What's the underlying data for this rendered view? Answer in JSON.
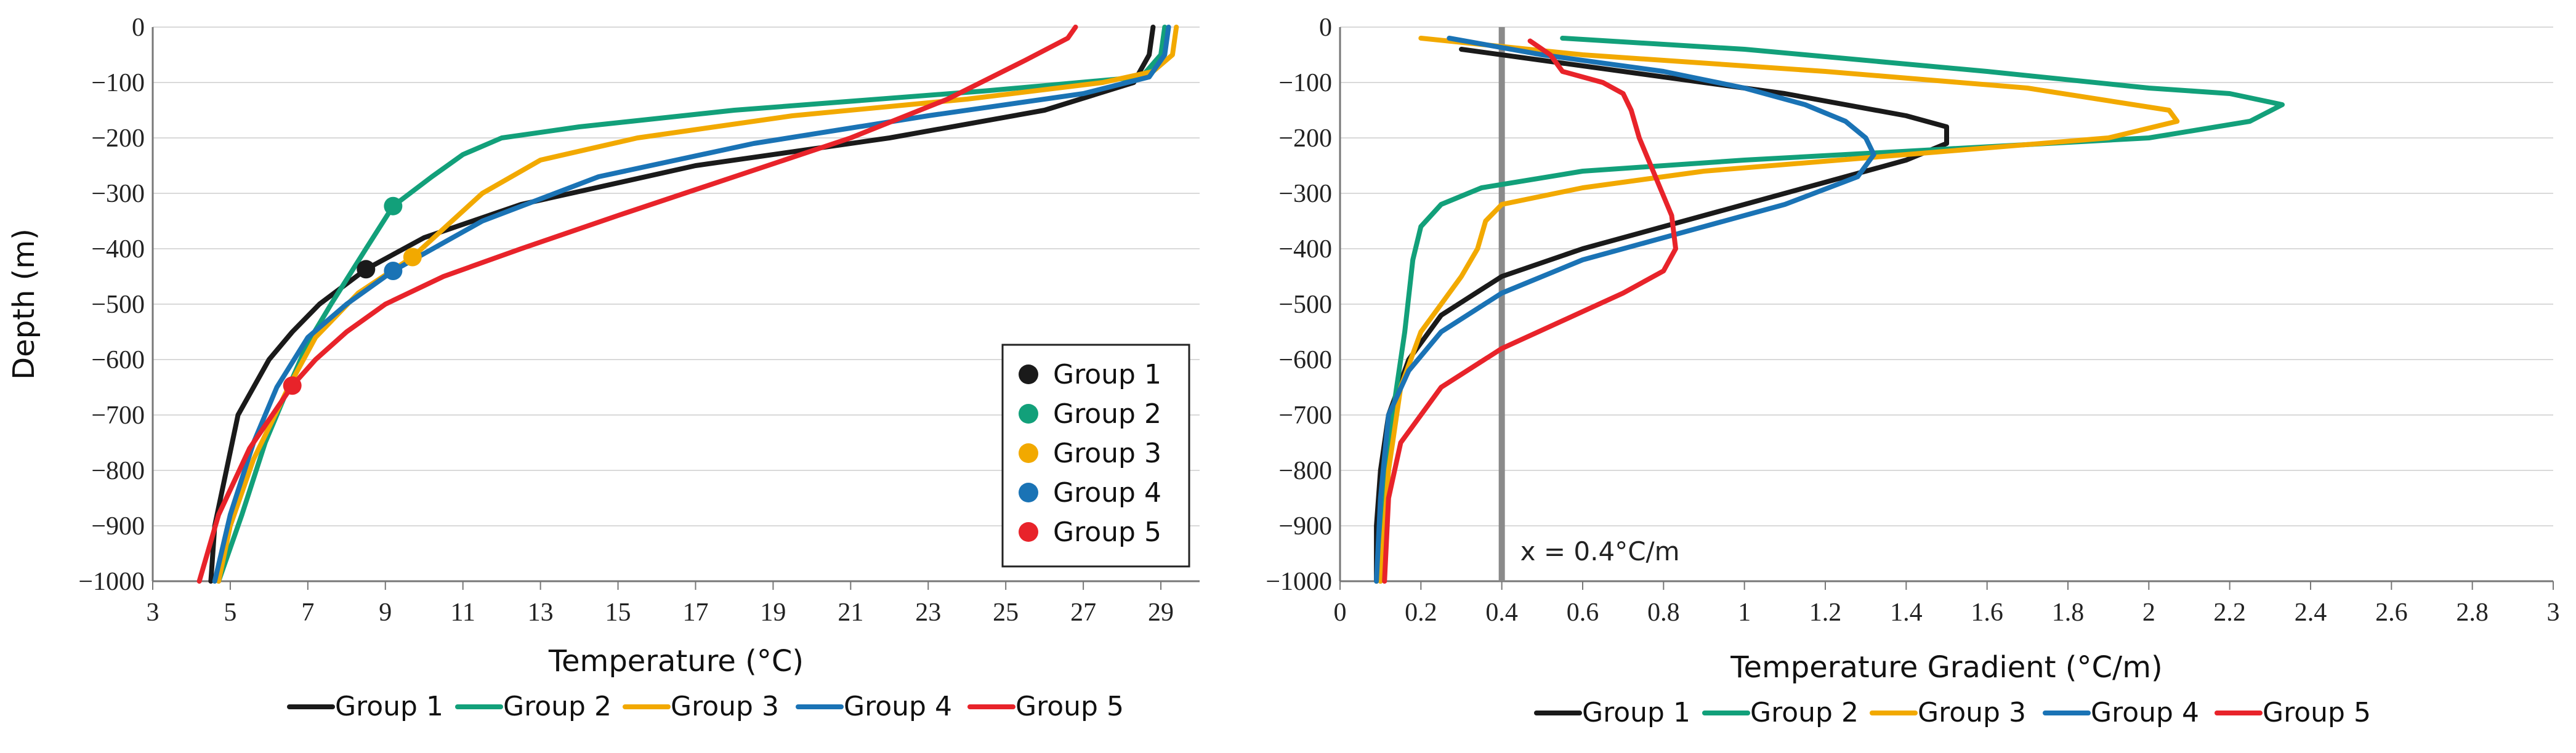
{
  "chart_data": [
    {
      "type": "line",
      "title": "",
      "xlabel": "Temperature (°C)",
      "ylabel": "Depth (m)",
      "xlim": [
        3,
        30
      ],
      "ylim": [
        -1000,
        0
      ],
      "xticks": [
        3,
        5,
        7,
        9,
        11,
        13,
        15,
        17,
        19,
        21,
        23,
        25,
        27,
        29
      ],
      "yticks": [
        0,
        -100,
        -200,
        -300,
        -400,
        -500,
        -600,
        -700,
        -800,
        -900,
        -1000
      ],
      "grid": "horizontal",
      "markers_legend_position": "center-right",
      "series": [
        {
          "name": "Group 1",
          "color": "#1a1a1a",
          "x": [
            28.8,
            28.7,
            28.3,
            26,
            22,
            17,
            12.5,
            10,
            8.5,
            7.3,
            6.6,
            6,
            5.6,
            5.2,
            4.9,
            4.6,
            4.5
          ],
          "y": [
            0,
            -50,
            -100,
            -150,
            -200,
            -250,
            -320,
            -380,
            -437,
            -500,
            -550,
            -600,
            -650,
            -700,
            -800,
            -900,
            -1000
          ],
          "marker": {
            "x": 8.5,
            "y": -437
          }
        },
        {
          "name": "Group 2",
          "color": "#12a07a",
          "x": [
            29.1,
            29,
            28.5,
            24.5,
            18,
            14,
            12,
            11,
            10.2,
            9.2,
            8.5,
            7.6,
            7,
            6.5,
            5.9,
            5.3,
            4.7
          ],
          "y": [
            0,
            -50,
            -90,
            -115,
            -150,
            -180,
            -200,
            -230,
            -270,
            -323,
            -400,
            -500,
            -570,
            -650,
            -750,
            -880,
            -1000
          ],
          "marker": {
            "x": 9.2,
            "y": -323
          }
        },
        {
          "name": "Group 3",
          "color": "#f2a900",
          "x": [
            29.4,
            29.3,
            28.8,
            27.5,
            24,
            19.5,
            15.5,
            13,
            11.5,
            9.7,
            8.3,
            7.2,
            6.5,
            5.6,
            5,
            4.7
          ],
          "y": [
            0,
            -50,
            -80,
            -100,
            -130,
            -160,
            -200,
            -240,
            -300,
            -415,
            -480,
            -560,
            -650,
            -780,
            -900,
            -1000
          ],
          "marker": {
            "x": 9.7,
            "y": -415
          }
        },
        {
          "name": "Group 4",
          "color": "#1a73b5",
          "x": [
            29.2,
            29.1,
            28.7,
            27,
            23,
            18.5,
            14.5,
            11.5,
            9.2,
            8,
            7,
            6.2,
            5.6,
            5,
            4.6
          ],
          "y": [
            0,
            -50,
            -90,
            -120,
            -160,
            -210,
            -270,
            -350,
            -440,
            -500,
            -560,
            -650,
            -750,
            -880,
            -1000
          ],
          "marker": {
            "x": 9.2,
            "y": -440
          }
        },
        {
          "name": "Group 5",
          "color": "#e8232a",
          "x": [
            26.8,
            26.6,
            25.5,
            23.5,
            21,
            18,
            15,
            12.5,
            10.5,
            9,
            8,
            7.2,
            6.6,
            5.5,
            4.7,
            4.2
          ],
          "y": [
            0,
            -20,
            -60,
            -130,
            -200,
            -270,
            -340,
            -400,
            -450,
            -500,
            -550,
            -600,
            -647,
            -760,
            -880,
            -1000
          ],
          "marker": {
            "x": 6.6,
            "y": -647
          }
        }
      ],
      "marker_legend": [
        "Group 1",
        "Group 2",
        "Group 3",
        "Group 4",
        "Group 5"
      ],
      "line_legend": [
        "Group 1",
        "Group 2",
        "Group 3",
        "Group 4",
        "Group 5"
      ]
    },
    {
      "type": "line",
      "title": "",
      "xlabel": "Temperature Gradient (°C/m)",
      "ylabel": "",
      "xlim": [
        0,
        3
      ],
      "ylim": [
        -1000,
        0
      ],
      "xticks": [
        0,
        0.2,
        0.4,
        0.6,
        0.8,
        1,
        1.2,
        1.4,
        1.6,
        1.8,
        2,
        2.2,
        2.4,
        2.6,
        2.8,
        3
      ],
      "yticks": [
        0,
        -100,
        -200,
        -300,
        -400,
        -500,
        -600,
        -700,
        -800,
        -900,
        -1000
      ],
      "grid": "horizontal",
      "reference_line": {
        "x": 0.4,
        "label": "x = 0.4°C/m"
      },
      "series": [
        {
          "name": "Group 1",
          "color": "#1a1a1a",
          "x": [
            0.3,
            0.5,
            0.8,
            1.1,
            1.4,
            1.5,
            1.5,
            1.4,
            1.2,
            1,
            0.8,
            0.6,
            0.4,
            0.25,
            0.17,
            0.12,
            0.1,
            0.09,
            0.09
          ],
          "y": [
            -40,
            -60,
            -90,
            -120,
            -160,
            -180,
            -210,
            -240,
            -280,
            -320,
            -360,
            -400,
            -450,
            -520,
            -600,
            -700,
            -800,
            -900,
            -1000
          ]
        },
        {
          "name": "Group 2",
          "color": "#12a07a",
          "x": [
            0.55,
            1,
            1.6,
            2,
            2.2,
            2.33,
            2.25,
            2,
            1.5,
            1,
            0.6,
            0.35,
            0.25,
            0.2,
            0.18,
            0.16,
            0.14,
            0.12,
            0.1
          ],
          "y": [
            -20,
            -40,
            -80,
            -110,
            -120,
            -140,
            -170,
            -200,
            -220,
            -240,
            -260,
            -290,
            -320,
            -360,
            -420,
            -550,
            -650,
            -750,
            -1000
          ]
        },
        {
          "name": "Group 3",
          "color": "#f2a900",
          "x": [
            0.2,
            0.6,
            1.2,
            1.7,
            2.05,
            2.07,
            1.9,
            1.4,
            0.9,
            0.6,
            0.4,
            0.36,
            0.34,
            0.3,
            0.25,
            0.2,
            0.15,
            0.12,
            0.1
          ],
          "y": [
            -20,
            -50,
            -80,
            -110,
            -150,
            -170,
            -200,
            -230,
            -260,
            -290,
            -320,
            -350,
            -400,
            -450,
            -500,
            -550,
            -650,
            -800,
            -1000
          ]
        },
        {
          "name": "Group 4",
          "color": "#1a73b5",
          "x": [
            0.27,
            0.5,
            0.8,
            1,
            1.15,
            1.25,
            1.3,
            1.32,
            1.28,
            1.1,
            0.85,
            0.6,
            0.4,
            0.25,
            0.17,
            0.12,
            0.1,
            0.09
          ],
          "y": [
            -20,
            -50,
            -80,
            -110,
            -140,
            -170,
            -200,
            -230,
            -270,
            -320,
            -370,
            -420,
            -480,
            -550,
            -620,
            -700,
            -850,
            -1000
          ]
        },
        {
          "name": "Group 5",
          "color": "#e8232a",
          "x": [
            0.47,
            0.52,
            0.55,
            0.65,
            0.7,
            0.72,
            0.74,
            0.78,
            0.82,
            0.83,
            0.8,
            0.7,
            0.55,
            0.4,
            0.25,
            0.15,
            0.12,
            0.11
          ],
          "y": [
            -25,
            -50,
            -80,
            -100,
            -120,
            -150,
            -200,
            -270,
            -340,
            -400,
            -440,
            -480,
            -530,
            -580,
            -650,
            -750,
            -850,
            -1000
          ]
        }
      ],
      "line_legend": [
        "Group 1",
        "Group 2",
        "Group 3",
        "Group 4",
        "Group 5"
      ]
    }
  ]
}
